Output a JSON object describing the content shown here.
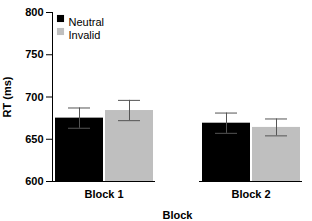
{
  "chart_data": {
    "type": "bar",
    "categories": [
      "Block 1",
      "Block 2"
    ],
    "series": [
      {
        "name": "Neutral",
        "color": "#000000",
        "values": [
          675,
          669
        ],
        "errors": [
          12,
          12
        ]
      },
      {
        "name": "Invalid",
        "color": "#bfbfbf",
        "values": [
          684,
          664
        ],
        "errors": [
          12,
          10
        ]
      }
    ],
    "x_label": "Block",
    "y_label": "RT (ms)",
    "ylim": [
      600,
      800
    ],
    "yticks": [
      600,
      650,
      700,
      750,
      800
    ],
    "legend": "top-left",
    "grid": false
  }
}
